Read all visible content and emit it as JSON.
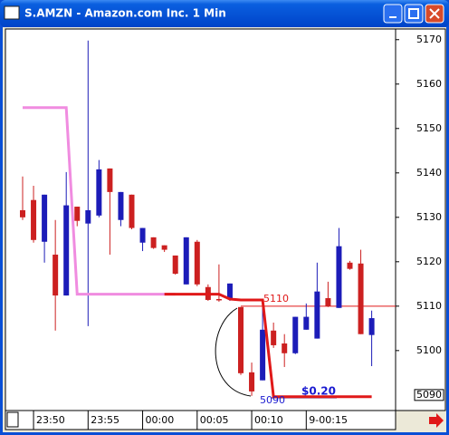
{
  "chart_data": {
    "type": "candlestick",
    "title": "S.AMZN - Amazon.com Inc. 1 Min",
    "categories": [
      null,
      "23:50",
      null,
      null,
      null,
      null,
      "23:55",
      null,
      null,
      null,
      null,
      "00:00",
      null,
      null,
      null,
      null,
      "00:05",
      null,
      null,
      null,
      null,
      "00:10",
      null,
      null,
      null,
      null,
      "9-00:15",
      null,
      null,
      null,
      null,
      null,
      null
    ],
    "open": [
      5131.6,
      5133.9,
      5124.5,
      5121.6,
      5112.4,
      5132.4,
      5128.6,
      5130.4,
      5141.0,
      5129.4,
      5135.1,
      5124.3,
      5125.5,
      5123.7,
      5121.4,
      5114.9,
      5124.5,
      5114.3,
      5111.6,
      5111.6,
      5109.8,
      5095.1,
      5093.3,
      5104.5,
      5101.6,
      5099.4,
      5104.7,
      5102.7,
      5111.8,
      5109.6,
      5119.8,
      5119.6,
      5103.5
    ],
    "high": [
      5139.2,
      5137.1,
      5135.1,
      5129.4,
      5140.2,
      5132.4,
      5169.8,
      5142.9,
      5141.0,
      5135.7,
      5135.1,
      5127.6,
      5125.5,
      5123.7,
      5121.4,
      5125.5,
      5124.9,
      5114.9,
      5119.4,
      5115.1,
      5109.8,
      5097.3,
      5109.6,
      5106.3,
      5103.7,
      5107.6,
      5110.6,
      5119.8,
      5115.5,
      5127.6,
      5120.2,
      5122.7,
      5109.0
    ],
    "low": [
      5129.4,
      5124.3,
      5119.8,
      5104.5,
      5112.4,
      5128.0,
      5105.5,
      5130.0,
      5121.6,
      5128.0,
      5127.3,
      5122.4,
      5122.9,
      5122.2,
      5117.1,
      5114.9,
      5114.5,
      5111.2,
      5111.0,
      5111.2,
      5094.5,
      5089.8,
      5093.3,
      5100.6,
      5096.3,
      5099.2,
      5104.7,
      5102.7,
      5109.8,
      5109.6,
      5118.2,
      5103.7,
      5096.5
    ],
    "close": [
      5130.0,
      5124.9,
      5135.1,
      5112.4,
      5132.7,
      5129.2,
      5131.6,
      5140.8,
      5135.7,
      5135.7,
      5127.6,
      5127.6,
      5123.1,
      5122.7,
      5117.3,
      5125.5,
      5114.9,
      5111.4,
      5111.4,
      5115.1,
      5094.9,
      5090.8,
      5104.7,
      5101.2,
      5099.4,
      5107.6,
      5107.6,
      5113.3,
      5110.0,
      5123.5,
      5118.4,
      5103.7,
      5107.3
    ],
    "up_color": "#1c1cb8",
    "down_color": "#cc2020",
    "lines": [
      {
        "color": "#f08ce0",
        "values": [
          5154.7,
          5154.7,
          5154.7,
          5154.7,
          5154.7,
          5112.7,
          5112.7,
          5112.7,
          5112.7,
          5112.7,
          5112.7,
          5112.7,
          5112.7,
          5112.7,
          5112.7,
          null,
          null,
          null,
          null,
          null,
          null,
          null,
          null,
          null,
          null,
          null,
          null,
          null,
          null,
          null,
          null,
          null,
          null
        ]
      },
      {
        "color": "#e01818",
        "values": [
          null,
          null,
          null,
          null,
          null,
          null,
          null,
          null,
          null,
          null,
          null,
          null,
          null,
          5112.7,
          5112.7,
          5112.7,
          5112.7,
          5112.7,
          5112.7,
          5111.6,
          5111.4,
          5111.4,
          5111.4,
          5089.6,
          5089.6,
          5089.6,
          5089.6,
          5089.6,
          5089.6,
          5089.6,
          5089.6,
          5089.6,
          5089.6
        ]
      }
    ],
    "level_line": {
      "value": 5110,
      "label": "5110",
      "color": "#e01818"
    },
    "low_label": {
      "value": 5090,
      "label": "5090"
    },
    "measure_label": "$0.20",
    "last_price": {
      "value": 5090,
      "label": "5090"
    },
    "ylim": [
      5086.5,
      5172.4
    ],
    "yticks": [
      5100,
      5110,
      5120,
      5130,
      5140,
      5150,
      5160,
      5170
    ]
  }
}
